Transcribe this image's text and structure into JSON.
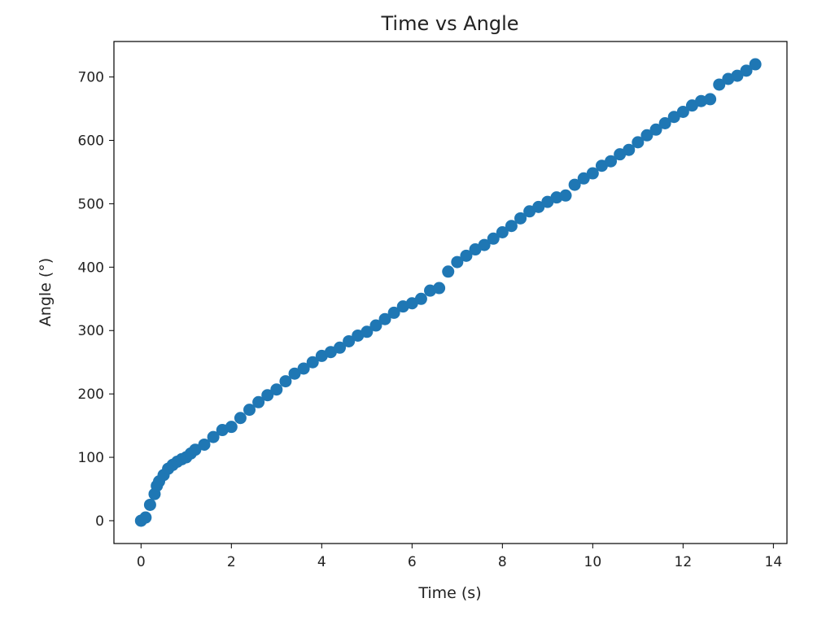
{
  "chart_data": {
    "type": "scatter",
    "title": "Time vs Angle",
    "xlabel": "Time (s)",
    "ylabel": "Angle (°)",
    "xlim": [
      -0.6,
      14.3
    ],
    "ylim": [
      -36,
      756
    ],
    "xticks": [
      0,
      2,
      4,
      6,
      8,
      10,
      12,
      14
    ],
    "yticks": [
      0,
      100,
      200,
      300,
      400,
      500,
      600,
      700
    ],
    "grid": false,
    "marker_color": "#1f77b4",
    "series": [
      {
        "name": "",
        "x": [
          0.0,
          0.1,
          0.2,
          0.3,
          0.35,
          0.4,
          0.5,
          0.6,
          0.7,
          0.8,
          0.9,
          1.0,
          1.1,
          1.2,
          1.4,
          1.6,
          1.8,
          2.0,
          2.2,
          2.4,
          2.6,
          2.8,
          3.0,
          3.2,
          3.4,
          3.6,
          3.8,
          4.0,
          4.2,
          4.4,
          4.6,
          4.8,
          5.0,
          5.2,
          5.4,
          5.6,
          5.8,
          6.0,
          6.2,
          6.4,
          6.6,
          6.8,
          7.0,
          7.2,
          7.4,
          7.6,
          7.8,
          8.0,
          8.2,
          8.4,
          8.6,
          8.8,
          9.0,
          9.2,
          9.4,
          9.6,
          9.8,
          10.0,
          10.2,
          10.4,
          10.6,
          10.8,
          11.0,
          11.2,
          11.4,
          11.6,
          11.8,
          12.0,
          12.2,
          12.4,
          12.6,
          12.8,
          13.0,
          13.2,
          13.4,
          13.6
        ],
        "y": [
          0,
          5,
          25,
          42,
          55,
          62,
          72,
          82,
          88,
          93,
          97,
          100,
          106,
          112,
          120,
          132,
          143,
          148,
          162,
          175,
          187,
          198,
          207,
          220,
          232,
          240,
          250,
          260,
          266,
          273,
          283,
          292,
          298,
          308,
          318,
          328,
          338,
          343,
          350,
          363,
          367,
          393,
          408,
          418,
          428,
          435,
          445,
          455,
          465,
          477,
          488,
          495,
          503,
          510,
          513,
          530,
          540,
          548,
          560,
          567,
          578,
          585,
          597,
          608,
          617,
          627,
          637,
          645,
          655,
          662,
          665,
          688,
          697,
          702,
          710,
          720
        ]
      }
    ]
  }
}
